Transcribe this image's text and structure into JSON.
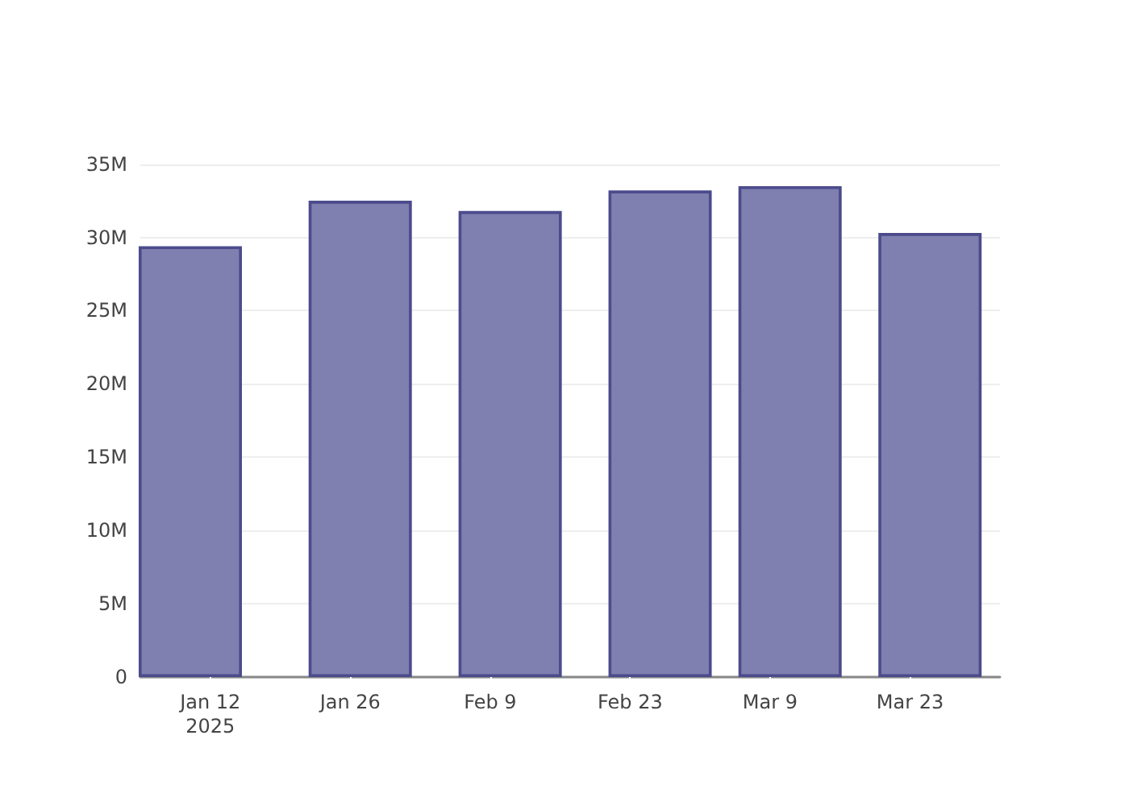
{
  "chart_data": {
    "type": "bar",
    "x": [
      "2025-01-10",
      "2025-01-27",
      "2025-02-11",
      "2025-02-26",
      "2025-03-11",
      "2025-03-25"
    ],
    "series": [
      {
        "color": "#7f7fb0",
        "values": [
          29400000,
          32500000,
          31800000,
          33200000,
          33500000,
          30300000
        ]
      }
    ],
    "xlim": [
      "2025-01-05",
      "2025-04-01"
    ],
    "xticks": [
      {
        "value": "2025-01-12",
        "label": "Jan 12\n2025"
      },
      {
        "value": "2025-01-26",
        "label": "Jan 26"
      },
      {
        "value": "2025-02-09",
        "label": "Feb 9"
      },
      {
        "value": "2025-02-23",
        "label": "Feb 23"
      },
      {
        "value": "2025-03-09",
        "label": "Mar 9"
      },
      {
        "value": "2025-03-23",
        "label": "Mar 23"
      }
    ],
    "ylim": [
      0,
      35200000
    ],
    "yticks": [
      {
        "value": 0,
        "label": "0"
      },
      {
        "value": 5000000,
        "label": "5M"
      },
      {
        "value": 10000000,
        "label": "10M"
      },
      {
        "value": 15000000,
        "label": "15M"
      },
      {
        "value": 20000000,
        "label": "20M"
      },
      {
        "value": 25000000,
        "label": "25M"
      },
      {
        "value": 30000000,
        "label": "30M"
      },
      {
        "value": 35000000,
        "label": "35M"
      }
    ],
    "grid": "y"
  }
}
